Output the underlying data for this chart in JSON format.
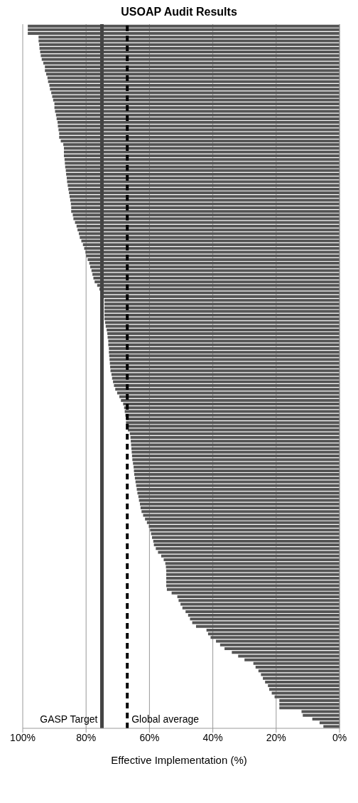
{
  "chart_data": {
    "type": "bar",
    "orientation": "horizontal",
    "title": "USOAP Audit Results",
    "xlabel": "Effective Implementation (%)",
    "categories": [
      null,
      null,
      null,
      null,
      null,
      null,
      null,
      null,
      null,
      null,
      null,
      null,
      null,
      null,
      null,
      null,
      null,
      null,
      null,
      null,
      null,
      null,
      null,
      null,
      null,
      null,
      null,
      null,
      null,
      null,
      null,
      null,
      null,
      null,
      null,
      null,
      null,
      null,
      null,
      null,
      null,
      null,
      null,
      null,
      null,
      null,
      null,
      null,
      null,
      null,
      null,
      null,
      null,
      null,
      null,
      null,
      null,
      null,
      null,
      null,
      null,
      null,
      null,
      null,
      null,
      null,
      null,
      null,
      null,
      null,
      null,
      null,
      null,
      null,
      null,
      null,
      null,
      null,
      null,
      null,
      null,
      null,
      null,
      null,
      null,
      null,
      null,
      null,
      null,
      null,
      null,
      null,
      null,
      null,
      null,
      null,
      null,
      null,
      null,
      null,
      null,
      null,
      null,
      null,
      null,
      null,
      null,
      null,
      null,
      null,
      null,
      null,
      null,
      null,
      null,
      null,
      null,
      null,
      null,
      null,
      null,
      null,
      null,
      null,
      null,
      null,
      null,
      null,
      null,
      null,
      null,
      null,
      null,
      null,
      null,
      null,
      null,
      null,
      null,
      null,
      null,
      null,
      null,
      null,
      null,
      null,
      null,
      null,
      null,
      null,
      null,
      null,
      null,
      null,
      null,
      null,
      null,
      null,
      null,
      null,
      null,
      null,
      null,
      null,
      null,
      null,
      null,
      null,
      null,
      null,
      null,
      null,
      null,
      null,
      null,
      null,
      null,
      null,
      null,
      null,
      null,
      null,
      null,
      null,
      null,
      null,
      null,
      null,
      null,
      null
    ],
    "values": [
      98.4,
      98.4,
      98.4,
      95,
      95,
      94.8,
      94.7,
      94.5,
      94.3,
      94,
      93.5,
      93,
      93,
      92.6,
      92.2,
      92,
      91.6,
      91.4,
      91,
      90.7,
      90.4,
      90,
      90,
      89.8,
      89.5,
      89.3,
      89,
      88.9,
      88.7,
      88.5,
      88.5,
      88,
      87.2,
      87,
      87,
      87,
      86.8,
      86.7,
      86.6,
      86.4,
      86.3,
      86.1,
      86,
      85.8,
      85.6,
      85.4,
      85.2,
      85,
      84.8,
      84.7,
      84.7,
      84.2,
      84,
      83.5,
      83,
      82.7,
      82.3,
      82,
      81.5,
      81,
      80.6,
      80.2,
      80,
      79.5,
      79,
      78.7,
      78.3,
      78,
      77.7,
      77.3,
      76.5,
      75.8,
      75,
      74.5,
      74.2,
      74.2,
      74.2,
      74.2,
      74.2,
      74.2,
      74,
      73.8,
      73.5,
      73.3,
      73.2,
      73,
      73,
      72.8,
      72.8,
      72.7,
      72.6,
      72.5,
      72.4,
      72.3,
      72,
      71.8,
      71.5,
      71.2,
      70.8,
      70.2,
      69.5,
      69,
      68.3,
      68,
      67.8,
      67.6,
      67.4,
      67.4,
      67.2,
      66.8,
      66.2,
      66,
      65.9,
      65.8,
      65.7,
      65.6,
      65.5,
      65.4,
      65.2,
      65,
      64.9,
      64.8,
      64.6,
      64.4,
      64.2,
      64,
      63.8,
      63.5,
      63.3,
      63,
      62.8,
      62.5,
      62,
      61.4,
      60.8,
      60.2,
      59.8,
      59.5,
      59.2,
      58.8,
      58.6,
      58,
      57.3,
      56.3,
      55.5,
      55,
      54.8,
      54.7,
      54.7,
      54.7,
      54.7,
      54.7,
      54.5,
      53,
      51.2,
      50.8,
      50.2,
      49.6,
      48.6,
      47.8,
      47.2,
      46.5,
      45.3,
      42,
      41.5,
      40.7,
      39,
      37.7,
      36.3,
      34,
      32,
      30,
      27.2,
      26.5,
      25.6,
      24.8,
      24.2,
      23.5,
      22.6,
      22.2,
      21.4,
      20.5,
      19,
      19,
      19,
      12,
      11.6,
      8.6,
      6.3,
      5.1
    ],
    "color": "#555555",
    "xlim": [
      100,
      0
    ],
    "xticks": [
      {
        "value": 100,
        "label": "100%"
      },
      {
        "value": 80,
        "label": "80%"
      },
      {
        "value": 60,
        "label": "60%"
      },
      {
        "value": 40,
        "label": "40%"
      },
      {
        "value": 20,
        "label": "20%"
      },
      {
        "value": 0,
        "label": "0%"
      }
    ],
    "grid": "x",
    "ref_lines": [
      {
        "axis": "x",
        "value": 75,
        "label": "GASP Target",
        "color": "#444444",
        "line_style": "solid"
      },
      {
        "axis": "x",
        "value": 67,
        "label": "Global average",
        "color": "#000000",
        "line_style": "dashed"
      }
    ]
  }
}
